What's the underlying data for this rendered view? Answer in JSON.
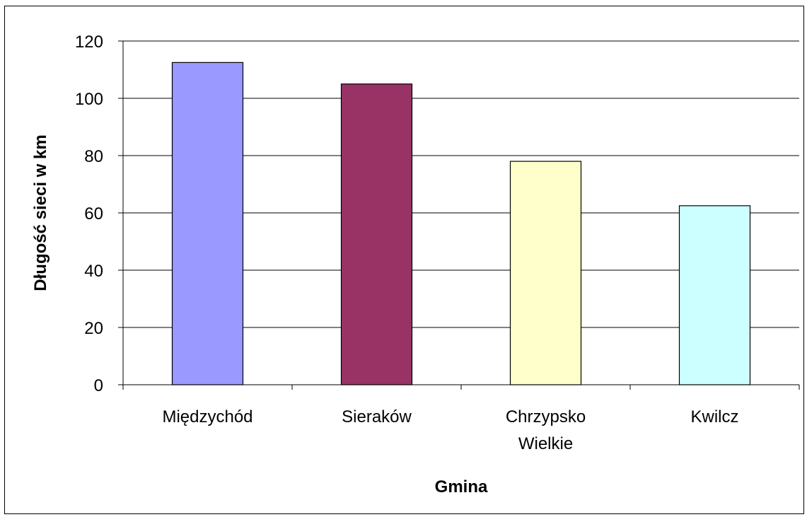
{
  "chart_data": {
    "type": "bar",
    "categories": [
      [
        "Międzychód"
      ],
      [
        "Sieraków"
      ],
      [
        "Chrzypsko",
        "Wielkie"
      ],
      [
        "Kwilcz"
      ]
    ],
    "values": [
      112.5,
      105,
      78,
      62.5
    ],
    "colors": [
      "#9999ff",
      "#993366",
      "#ffffcc",
      "#ccffff"
    ],
    "xlabel": "Gmina",
    "ylabel": "Długość sieci w km",
    "ylim": [
      0,
      120
    ],
    "yticks": [
      0,
      20,
      40,
      60,
      80,
      100,
      120
    ],
    "grid": true,
    "legend": "none"
  }
}
